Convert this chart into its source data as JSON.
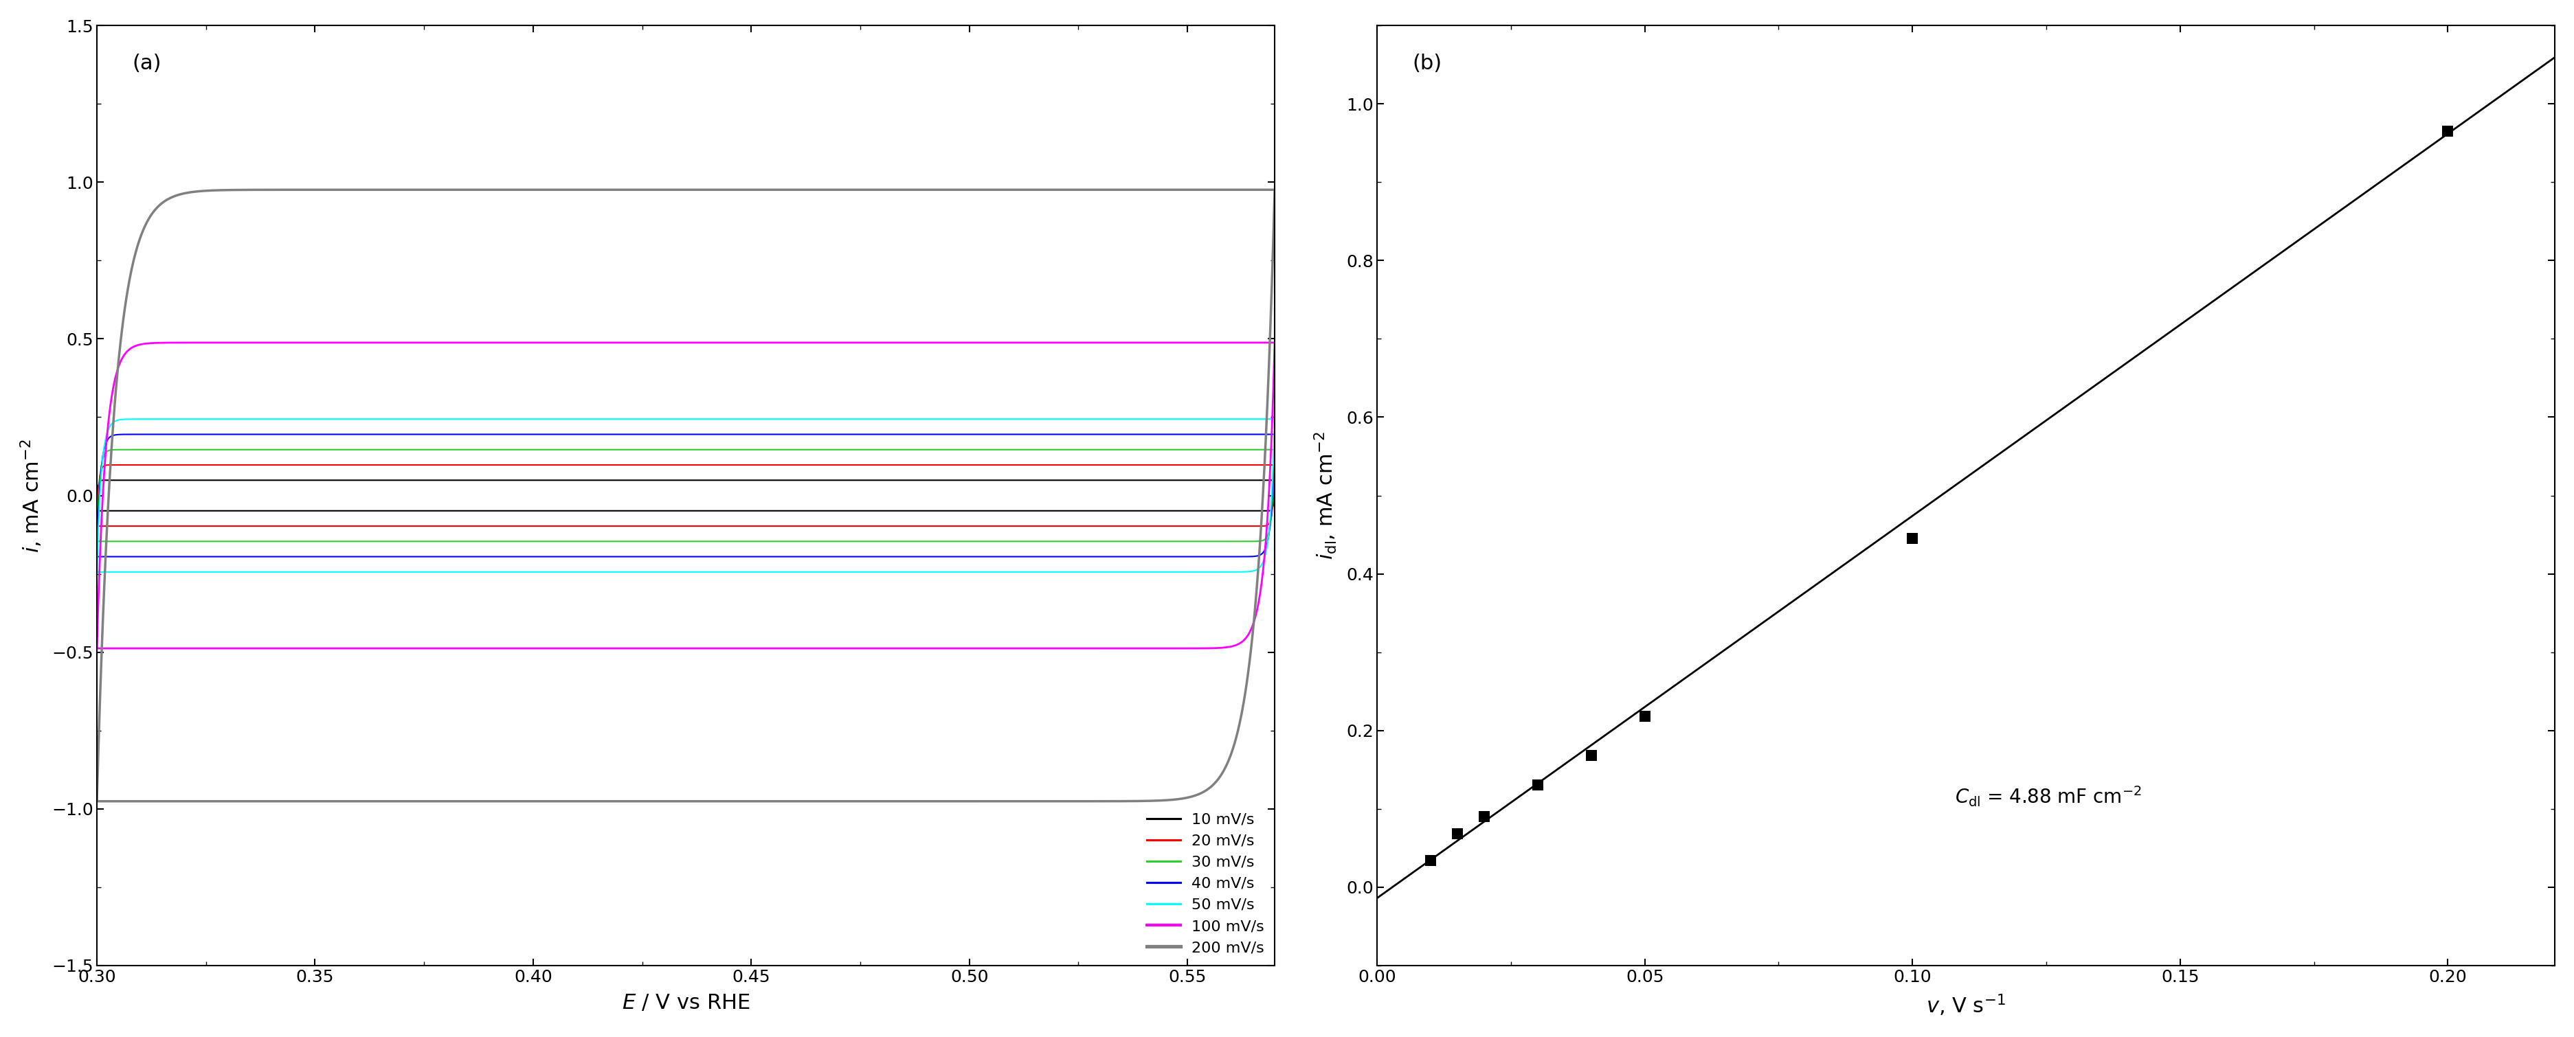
{
  "panel_a": {
    "label": "(a)",
    "xlabel": "E / V vs RHE",
    "ylabel": "i, mA cm⁻²",
    "xlim": [
      0.3,
      0.57
    ],
    "ylim": [
      -1.5,
      1.5
    ],
    "xticks": [
      0.3,
      0.35,
      0.4,
      0.45,
      0.5,
      0.55
    ],
    "yticks": [
      -1.5,
      -1.0,
      -0.5,
      0.0,
      0.5,
      1.0,
      1.5
    ],
    "scan_rates": [
      10,
      20,
      30,
      40,
      50,
      100,
      200
    ],
    "colors": [
      "black",
      "red",
      "limegreen",
      "blue",
      "cyan",
      "magenta",
      "gray"
    ],
    "linewidths": [
      1.5,
      1.5,
      1.5,
      1.5,
      1.5,
      2.0,
      2.5
    ],
    "legend_labels": [
      "10 mV/s",
      "20 mV/s",
      "30 mV/s",
      "40 mV/s",
      "50 mV/s",
      "100 mV/s",
      "200 mV/s"
    ]
  },
  "panel_b": {
    "label": "(b)",
    "xlabel": "v, V s⁻¹",
    "xlim": [
      0.0,
      0.22
    ],
    "ylim": [
      -0.1,
      1.1
    ],
    "xticks": [
      0.0,
      0.05,
      0.1,
      0.15,
      0.2
    ],
    "yticks": [
      0.0,
      0.2,
      0.4,
      0.6,
      0.8,
      1.0
    ],
    "scatter_x": [
      0.01,
      0.015,
      0.02,
      0.03,
      0.04,
      0.05,
      0.1,
      0.2
    ],
    "scatter_y": [
      0.034,
      0.068,
      0.09,
      0.13,
      0.168,
      0.218,
      0.445,
      0.965
    ],
    "line_x": [
      -0.005,
      0.225
    ],
    "line_slope": 4.88,
    "line_intercept": -0.014
  }
}
